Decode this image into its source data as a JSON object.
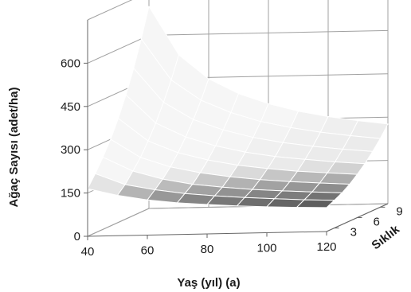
{
  "chart_data": {
    "type": "surface3d",
    "title": "",
    "xlabel": "Yaş (yıl) (a)",
    "ylabel": "Ağaç Sayısı (adet/ha)",
    "zlabel": "Sıklık",
    "x_ticks": [
      40,
      60,
      80,
      100,
      120
    ],
    "y_ticks": [
      0,
      150,
      300,
      450,
      600
    ],
    "depth_ticks": [
      3,
      6,
      9
    ],
    "ylim": [
      0,
      750
    ],
    "xlim": [
      40,
      120
    ],
    "depth_range": [
      2,
      10
    ],
    "grid": true,
    "x": [
      40,
      50,
      60,
      70,
      80,
      90,
      100,
      110,
      120
    ],
    "depth": [
      2,
      3,
      4,
      5,
      6,
      7,
      8,
      9,
      10
    ],
    "surface": [
      [
        165,
        140,
        122,
        110,
        102,
        95,
        90,
        86,
        83
      ],
      [
        205,
        165,
        145,
        130,
        120,
        112,
        106,
        100,
        96
      ],
      [
        250,
        200,
        170,
        150,
        138,
        128,
        121,
        115,
        110
      ],
      [
        300,
        235,
        200,
        178,
        162,
        150,
        141,
        134,
        128
      ],
      [
        360,
        280,
        237,
        210,
        190,
        176,
        165,
        157,
        150
      ],
      [
        430,
        330,
        280,
        247,
        223,
        206,
        194,
        183,
        175
      ],
      [
        510,
        390,
        328,
        290,
        262,
        242,
        227,
        215,
        205
      ],
      [
        600,
        455,
        383,
        338,
        305,
        282,
        264,
        250,
        238
      ],
      [
        700,
        530,
        445,
        392,
        355,
        327,
        306,
        290,
        276
      ]
    ],
    "colors": {
      "light_band": "#dcdcdc",
      "dark_band": "#5a5a5a",
      "grid": "#a0a0a0",
      "mesh": "#ffffff"
    }
  }
}
